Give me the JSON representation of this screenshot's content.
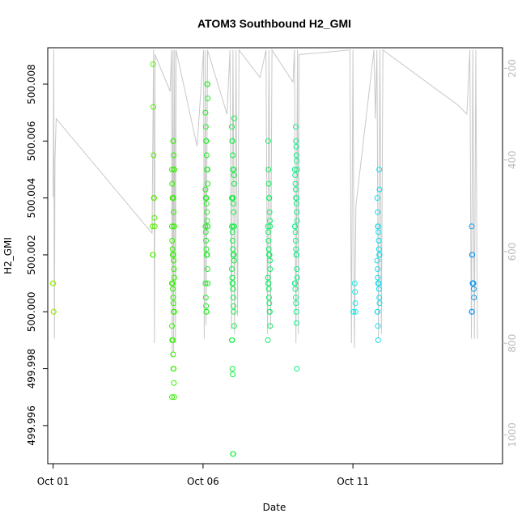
{
  "chart_data": {
    "type": "scatter",
    "title": "ATOM3 Southbound H2_GMI",
    "xlabel": "Date",
    "ylabel": "H2_GMI",
    "x_unit": "day of October",
    "xlim": [
      0.82,
      15.99
    ],
    "ylim": [
      499.99466,
      500.00928
    ],
    "right_axis": {
      "label": "",
      "lim": [
        1063,
        155
      ],
      "reversed": true,
      "ticks": [
        200,
        400,
        600,
        800,
        1000
      ],
      "tick_labels": [
        "200",
        "400",
        "600",
        "800",
        "1000"
      ],
      "color": "#bbbbbb"
    },
    "x_ticks": [
      1,
      6,
      11
    ],
    "x_tick_labels": [
      "Oct 01",
      "Oct 06",
      "Oct 11"
    ],
    "y_ticks": [
      499.996,
      499.998,
      500.0,
      500.002,
      500.004,
      500.006,
      500.008
    ],
    "y_tick_labels": [
      "499.996",
      "499.998",
      "500.000",
      "500.002",
      "500.004",
      "500.006",
      "500.008"
    ],
    "grid": false,
    "legend": "none",
    "marker": "open-circle",
    "color_scale": "date gradient: yellow-green to blue",
    "series": [
      {
        "x": 1.03,
        "color": "#99ee00",
        "y": [
          500.001,
          500.001,
          500.0,
          500.0
        ]
      },
      {
        "x": 4.35,
        "color": "#55ee00",
        "y": [
          500.0087,
          500.0072,
          500.0055,
          500.004,
          500.004,
          500.0033,
          500.003,
          500.003,
          500.002,
          500.002
        ]
      },
      {
        "x": 5.0,
        "color": "#33ee00",
        "y": [
          500.006,
          500.006,
          500.0055,
          500.005,
          500.005,
          500.005,
          500.0045,
          500.004,
          500.004,
          500.004,
          500.004,
          500.0035,
          500.003,
          500.003,
          500.003,
          500.0025,
          500.0022,
          500.002,
          500.002,
          500.002,
          500.0018,
          500.0015,
          500.0012,
          500.001,
          500.001,
          500.001,
          500.0008,
          500.0005,
          500.0003,
          500.0,
          500.0,
          500.0,
          499.9995,
          499.999,
          499.999,
          499.999,
          499.9985,
          499.998,
          499.998,
          499.9975,
          499.997,
          499.997
        ]
      },
      {
        "x": 6.12,
        "color": "#22ee22",
        "y": [
          500.008,
          500.008,
          500.0075,
          500.007,
          500.0065,
          500.006,
          500.006,
          500.0055,
          500.005,
          500.005,
          500.005,
          500.0045,
          500.0043,
          500.004,
          500.004,
          500.004,
          500.0038,
          500.0035,
          500.0032,
          500.003,
          500.003,
          500.003,
          500.0028,
          500.0025,
          500.0022,
          500.002,
          500.002,
          500.002,
          500.0015,
          500.001,
          500.001,
          500.0005,
          500.0002,
          500.0,
          500.0
        ]
      },
      {
        "x": 7.0,
        "color": "#11ee44",
        "y": [
          500.0068,
          500.0065,
          500.006,
          500.006,
          500.0055,
          500.005,
          500.005,
          500.005,
          500.0048,
          500.0045,
          500.004,
          500.004,
          500.004,
          500.004,
          500.004,
          500.0038,
          500.0035,
          500.003,
          500.003,
          500.003,
          500.003,
          500.0028,
          500.0025,
          500.0022,
          500.002,
          500.002,
          500.002,
          500.0018,
          500.0015,
          500.0012,
          500.001,
          500.001,
          500.0008,
          500.0005,
          500.0002,
          500.0,
          499.9995,
          499.999,
          499.999,
          499.998,
          499.9978,
          499.995,
          499.995
        ]
      },
      {
        "x": 8.2,
        "color": "#11ee66",
        "y": [
          500.006,
          500.005,
          500.0045,
          500.004,
          500.004,
          500.0035,
          500.0032,
          500.003,
          500.003,
          500.0028,
          500.0025,
          500.0022,
          500.002,
          500.002,
          500.002,
          500.0018,
          500.0015,
          500.0012,
          500.001,
          500.001,
          500.0008,
          500.0005,
          500.0003,
          500.0,
          500.0,
          499.9995,
          499.999
        ]
      },
      {
        "x": 9.1,
        "color": "#11ee88",
        "y": [
          500.0065,
          500.006,
          500.0058,
          500.0055,
          500.0053,
          500.005,
          500.005,
          500.0048,
          500.0045,
          500.0043,
          500.004,
          500.004,
          500.0038,
          500.0035,
          500.0032,
          500.003,
          500.003,
          500.0028,
          500.0025,
          500.0022,
          500.002,
          500.002,
          500.0015,
          500.0012,
          500.001,
          500.001,
          500.0008,
          500.0005,
          500.0003,
          500.0,
          499.9996,
          499.998
        ]
      },
      {
        "x": 11.05,
        "color": "#11eeee",
        "y": [
          500.001,
          500.0007,
          500.0003,
          500.0,
          500.0,
          500.0
        ]
      },
      {
        "x": 11.85,
        "color": "#11ddee",
        "y": [
          500.005,
          500.0043,
          500.004,
          500.0035,
          500.003,
          500.003,
          500.0028,
          500.0025,
          500.0022,
          500.002,
          500.002,
          500.0018,
          500.0015,
          500.0012,
          500.001,
          500.001,
          500.001,
          500.0008,
          500.0005,
          500.0003,
          500.0,
          500.0,
          499.9995,
          499.999
        ]
      },
      {
        "x": 15.0,
        "color": "#1199ee",
        "y": [
          500.003,
          500.002,
          500.002,
          500.001,
          500.001,
          500.001,
          500.001,
          500.0008,
          500.0005,
          500.0,
          500.0
        ]
      }
    ],
    "profile_series": {
      "axis": "right",
      "color": "#c8c8c8",
      "points": [
        [
          1.0,
          480
        ],
        [
          1.02,
          160
        ],
        [
          1.04,
          790
        ],
        [
          1.06,
          400
        ],
        [
          1.1,
          310
        ],
        [
          4.3,
          560
        ],
        [
          4.35,
          160
        ],
        [
          4.38,
          800
        ],
        [
          4.4,
          170
        ],
        [
          4.9,
          250
        ],
        [
          4.95,
          160
        ],
        [
          4.97,
          830
        ],
        [
          5.0,
          160
        ],
        [
          5.02,
          820
        ],
        [
          5.05,
          160
        ],
        [
          5.08,
          800
        ],
        [
          5.1,
          160
        ],
        [
          5.8,
          370
        ],
        [
          6.02,
          160
        ],
        [
          6.04,
          790
        ],
        [
          6.08,
          160
        ],
        [
          6.1,
          760
        ],
        [
          6.15,
          160
        ],
        [
          6.8,
          300
        ],
        [
          6.9,
          160
        ],
        [
          6.95,
          770
        ],
        [
          7.0,
          160
        ],
        [
          7.05,
          780
        ],
        [
          7.1,
          160
        ],
        [
          7.15,
          740
        ],
        [
          7.2,
          160
        ],
        [
          7.9,
          220
        ],
        [
          8.1,
          160
        ],
        [
          8.15,
          780
        ],
        [
          8.2,
          160
        ],
        [
          8.25,
          770
        ],
        [
          8.3,
          160
        ],
        [
          9.0,
          230
        ],
        [
          9.05,
          160
        ],
        [
          9.1,
          800
        ],
        [
          9.15,
          160
        ],
        [
          9.18,
          780
        ],
        [
          9.2,
          170
        ],
        [
          10.9,
          160
        ],
        [
          10.95,
          800
        ],
        [
          11.0,
          160
        ],
        [
          11.05,
          810
        ],
        [
          11.1,
          500
        ],
        [
          11.7,
          160
        ],
        [
          11.75,
          310
        ],
        [
          11.8,
          160
        ],
        [
          11.85,
          790
        ],
        [
          11.9,
          160
        ],
        [
          11.95,
          780
        ],
        [
          12.0,
          160
        ],
        [
          14.5,
          280
        ],
        [
          14.8,
          300
        ],
        [
          14.9,
          160
        ],
        [
          14.95,
          790
        ],
        [
          15.0,
          160
        ],
        [
          15.05,
          790
        ],
        [
          15.1,
          160
        ],
        [
          15.15,
          790
        ]
      ]
    }
  }
}
